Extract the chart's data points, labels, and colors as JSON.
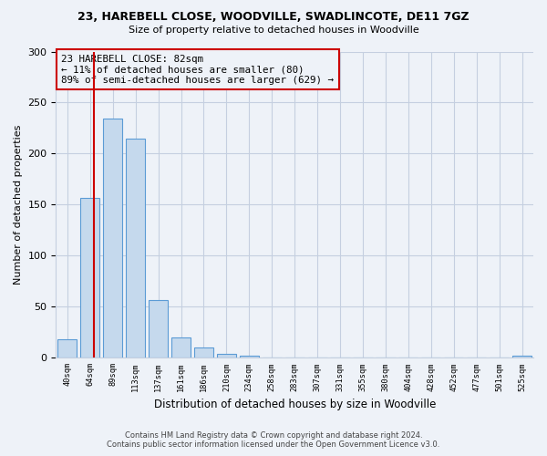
{
  "title1": "23, HAREBELL CLOSE, WOODVILLE, SWADLINCOTE, DE11 7GZ",
  "title2": "Size of property relative to detached houses in Woodville",
  "xlabel": "Distribution of detached houses by size in Woodville",
  "ylabel": "Number of detached properties",
  "bin_labels": [
    "40sqm",
    "64sqm",
    "89sqm",
    "113sqm",
    "137sqm",
    "161sqm",
    "186sqm",
    "210sqm",
    "234sqm",
    "258sqm",
    "283sqm",
    "307sqm",
    "331sqm",
    "355sqm",
    "380sqm",
    "404sqm",
    "428sqm",
    "452sqm",
    "477sqm",
    "501sqm",
    "525sqm"
  ],
  "bar_heights": [
    18,
    157,
    234,
    215,
    57,
    20,
    10,
    4,
    2,
    0,
    0,
    0,
    0,
    0,
    0,
    0,
    0,
    0,
    0,
    0,
    2
  ],
  "bar_color": "#c5d9ed",
  "bar_edge_color": "#5b9bd5",
  "marker_line_color": "#cc0000",
  "annotation_text": "23 HAREBELL CLOSE: 82sqm\n← 11% of detached houses are smaller (80)\n89% of semi-detached houses are larger (629) →",
  "annotation_box_edge": "#cc0000",
  "ylim": [
    0,
    300
  ],
  "yticks": [
    0,
    50,
    100,
    150,
    200,
    250,
    300
  ],
  "footnote1": "Contains HM Land Registry data © Crown copyright and database right 2024.",
  "footnote2": "Contains public sector information licensed under the Open Government Licence v3.0.",
  "bg_color": "#eef2f8",
  "plot_bg_color": "#eef2f8",
  "grid_color": "#c5cfe0"
}
